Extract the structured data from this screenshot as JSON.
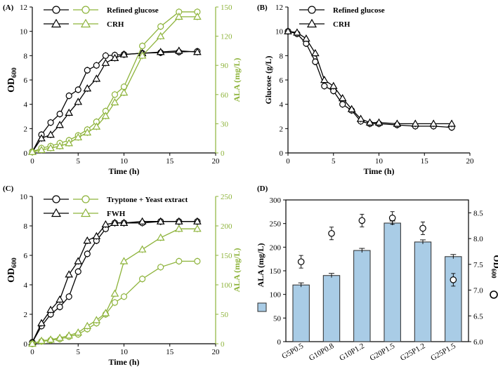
{
  "colors": {
    "black": "#000000",
    "green": "#8DB33A",
    "bar_fill": "#A9CCE6",
    "bar_stroke": "#2B2B2B"
  },
  "chart_data": [
    {
      "panel": "(A)",
      "type": "line",
      "xlabel": "Time (h)",
      "ylabel": "OD600",
      "ylabel_main": "OD",
      "ylabel_sub": "600",
      "y2label": "ALA (mg/L)",
      "xlim": [
        0,
        20
      ],
      "ylim": [
        0,
        12
      ],
      "y2lim": [
        0,
        150
      ],
      "xticks": [
        0,
        5,
        10,
        15,
        20
      ],
      "yticks": [
        0,
        2,
        4,
        6,
        8,
        10,
        12
      ],
      "y2ticks": [
        0,
        30,
        60,
        90,
        120,
        150
      ],
      "legend": [
        {
          "label": "Refined glucose",
          "markers": [
            "circle-black",
            "circle-green"
          ]
        },
        {
          "label": "CRH",
          "markers": [
            "triangle-black",
            "triangle-green"
          ]
        }
      ],
      "series": [
        {
          "name": "Refined glucose OD600",
          "axis": "left",
          "color": "black",
          "marker": "circle",
          "x": [
            0,
            1,
            2,
            3,
            4,
            5,
            6,
            7,
            8,
            9,
            10,
            12,
            14,
            16,
            18
          ],
          "y": [
            0.1,
            1.5,
            2.5,
            3.2,
            4.7,
            5.2,
            6.8,
            7.2,
            8.0,
            8.05,
            8.1,
            8.2,
            8.25,
            8.3,
            8.35
          ]
        },
        {
          "name": "CRH OD600",
          "axis": "left",
          "color": "black",
          "marker": "triangle",
          "x": [
            0,
            1,
            2,
            3,
            4,
            5,
            6,
            7,
            8,
            9,
            10,
            12,
            14,
            16,
            18
          ],
          "y": [
            0.1,
            1.2,
            1.5,
            2.3,
            3.3,
            4.2,
            5.3,
            6.1,
            7.4,
            7.8,
            8.1,
            8.2,
            8.3,
            8.4,
            8.3
          ]
        },
        {
          "name": "Refined glucose ALA",
          "axis": "right",
          "color": "green",
          "marker": "circle",
          "x": [
            0,
            1,
            2,
            3,
            4,
            5,
            6,
            7,
            8,
            9,
            10,
            12,
            14,
            16,
            18
          ],
          "y": [
            1,
            5,
            7,
            10,
            13,
            18,
            24,
            32,
            43,
            60,
            68,
            110,
            130,
            145,
            145
          ]
        },
        {
          "name": "CRH ALA",
          "axis": "right",
          "color": "green",
          "marker": "triangle",
          "x": [
            0,
            1,
            2,
            3,
            4,
            5,
            6,
            7,
            8,
            9,
            10,
            12,
            14,
            16,
            18
          ],
          "y": [
            1,
            3,
            5,
            7,
            10,
            16,
            21,
            27,
            38,
            52,
            62,
            100,
            120,
            140,
            140
          ]
        }
      ]
    },
    {
      "panel": "(B)",
      "type": "line",
      "xlabel": "Time (h)",
      "ylabel": "Glucose (g/L)",
      "xlim": [
        0,
        20
      ],
      "ylim": [
        0,
        12
      ],
      "xticks": [
        0,
        5,
        10,
        15,
        20
      ],
      "yticks": [
        0,
        2,
        4,
        6,
        8,
        10,
        12
      ],
      "legend": [
        {
          "label": "Refined glucose",
          "markers": [
            "circle-black"
          ]
        },
        {
          "label": "CRH",
          "markers": [
            "triangle-black"
          ]
        }
      ],
      "series": [
        {
          "name": "Refined glucose",
          "color": "black",
          "marker": "circle",
          "x": [
            0,
            1,
            2,
            3,
            4,
            5,
            6,
            7,
            8,
            9,
            10,
            12,
            14,
            16,
            18
          ],
          "y": [
            10.0,
            9.8,
            9.0,
            7.5,
            5.5,
            5.1,
            4.0,
            3.5,
            2.6,
            2.4,
            2.4,
            2.3,
            2.2,
            2.2,
            2.1
          ]
        },
        {
          "name": "CRH",
          "color": "black",
          "marker": "triangle",
          "x": [
            0,
            1,
            2,
            3,
            4,
            5,
            6,
            7,
            8,
            9,
            10,
            12,
            14,
            16,
            18
          ],
          "y": [
            10.0,
            9.9,
            9.4,
            8.2,
            6.0,
            5.5,
            4.5,
            3.6,
            2.8,
            2.5,
            2.5,
            2.4,
            2.4,
            2.4,
            2.4
          ]
        }
      ]
    },
    {
      "panel": "(C)",
      "type": "line",
      "xlabel": "Time (h)",
      "ylabel": "OD600",
      "ylabel_main": "OD",
      "ylabel_sub": "600",
      "y2label": "ALA (mg/L)",
      "xlim": [
        0,
        20
      ],
      "ylim": [
        0,
        10
      ],
      "y2lim": [
        0,
        250
      ],
      "xticks": [
        0,
        5,
        10,
        15,
        20
      ],
      "yticks": [
        0,
        2,
        4,
        6,
        8,
        10
      ],
      "y2ticks": [
        0,
        50,
        100,
        150,
        200,
        250
      ],
      "legend": [
        {
          "label": "Tryptone + Yeast extract",
          "markers": [
            "circle-black",
            "circle-green"
          ]
        },
        {
          "label": "FWH",
          "markers": [
            "triangle-black",
            "triangle-green"
          ]
        }
      ],
      "series": [
        {
          "name": "Tryptone + Yeast extract OD600",
          "axis": "left",
          "color": "black",
          "marker": "circle",
          "x": [
            0,
            1,
            2,
            3,
            4,
            5,
            6,
            7,
            8,
            9,
            10,
            12,
            14,
            16,
            18
          ],
          "y": [
            0.1,
            1.2,
            2.0,
            2.5,
            3.2,
            4.9,
            6.1,
            7.0,
            7.8,
            8.2,
            8.2,
            8.2,
            8.3,
            8.3,
            8.3
          ]
        },
        {
          "name": "FWH OD600",
          "axis": "left",
          "color": "black",
          "marker": "triangle",
          "x": [
            0,
            1,
            2,
            3,
            4,
            5,
            6,
            7,
            8,
            9,
            10,
            12,
            14,
            16,
            18
          ],
          "y": [
            0.1,
            1.4,
            2.3,
            3.0,
            4.7,
            5.6,
            7.0,
            7.3,
            8.1,
            8.2,
            8.2,
            8.3,
            8.3,
            8.3,
            8.3
          ]
        },
        {
          "name": "Tryptone + Yeast extract ALA",
          "axis": "right",
          "color": "green",
          "marker": "circle",
          "x": [
            0,
            1,
            2,
            3,
            4,
            5,
            6,
            7,
            8,
            9,
            10,
            12,
            14,
            16,
            18
          ],
          "y": [
            0,
            4,
            6,
            8,
            12,
            16,
            25,
            35,
            50,
            70,
            80,
            110,
            130,
            140,
            140
          ]
        },
        {
          "name": "FWH ALA",
          "axis": "right",
          "color": "green",
          "marker": "triangle",
          "x": [
            0,
            1,
            2,
            3,
            4,
            5,
            6,
            7,
            8,
            9,
            10,
            12,
            14,
            16,
            18
          ],
          "y": [
            0,
            5,
            7,
            10,
            14,
            19,
            30,
            40,
            52,
            85,
            140,
            160,
            180,
            195,
            195
          ]
        }
      ]
    },
    {
      "panel": "(D)",
      "type": "bar",
      "ylabel": "ALA (mg/L)",
      "y2label": "OD600",
      "y2label_main": "OD",
      "y2label_sub": "600",
      "ylim": [
        0,
        300
      ],
      "y2lim": [
        6.0,
        8.75
      ],
      "yticks": [
        0,
        50,
        100,
        150,
        200,
        250,
        300
      ],
      "y2ticks": [
        "6.0",
        "6.5",
        "7.0",
        "7.5",
        "8.0",
        "8.5"
      ],
      "categories": [
        "G5P0.5",
        "G10P0.8",
        "G10P1.2",
        "G20P1.5",
        "G25P1.2",
        "G25P1.5"
      ],
      "series": [
        {
          "name": "ALA (mg/L)",
          "type": "bar",
          "axis": "left",
          "values": [
            120,
            140,
            193,
            251,
            211,
            180
          ]
        },
        {
          "name": "OD600",
          "type": "scatter",
          "axis": "right",
          "marker": "circle",
          "values": [
            7.55,
            8.1,
            8.35,
            8.4,
            8.2,
            7.2
          ]
        }
      ]
    }
  ]
}
